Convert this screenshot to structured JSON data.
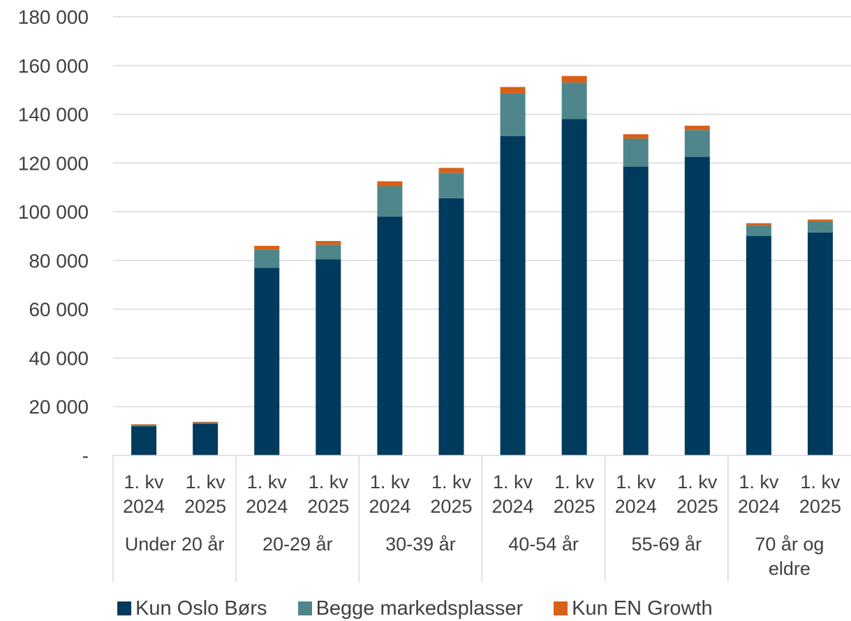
{
  "chart_data": {
    "type": "bar",
    "stacked": true,
    "groups": [
      "Under 20 år",
      "20-29 år",
      "30-39 år",
      "40-54 år",
      "55-69 år",
      "70 år og eldre"
    ],
    "periods": [
      "1. kv 2024",
      "1. kv 2025"
    ],
    "categories": [
      "1. kv 2024",
      "1. kv 2025",
      "1. kv 2024",
      "1. kv 2025",
      "1. kv 2024",
      "1. kv 2025",
      "1. kv 2024",
      "1. kv 2025",
      "1. kv 2024",
      "1. kv 2025",
      "1. kv 2024",
      "1. kv 2025"
    ],
    "series": [
      {
        "name": "Kun Oslo Børs",
        "color": "#003a5c",
        "values": [
          12000,
          13000,
          77000,
          80500,
          98000,
          105500,
          131000,
          138000,
          118500,
          122500,
          90000,
          91500
        ]
      },
      {
        "name": "Begge markedsplasser",
        "color": "#4e868c",
        "values": [
          500,
          500,
          7500,
          6000,
          12500,
          10500,
          17500,
          15000,
          11500,
          11000,
          4500,
          4500
        ]
      },
      {
        "name": "Kun EN Growth",
        "color": "#d86018",
        "values": [
          300,
          300,
          1500,
          1500,
          2000,
          2000,
          2700,
          2700,
          1800,
          1800,
          800,
          800
        ]
      }
    ],
    "ylim": [
      0,
      180000
    ],
    "yticks": [
      0,
      20000,
      40000,
      60000,
      80000,
      100000,
      120000,
      140000,
      160000,
      180000
    ],
    "ytick_labels": [
      "-",
      "20 000",
      "40 000",
      "60 000",
      "80 000",
      "100 000",
      "120 000",
      "140 000",
      "160 000",
      "180 000"
    ],
    "grid": true,
    "legend_position": "bottom",
    "title": "",
    "xlabel": "",
    "ylabel": ""
  }
}
